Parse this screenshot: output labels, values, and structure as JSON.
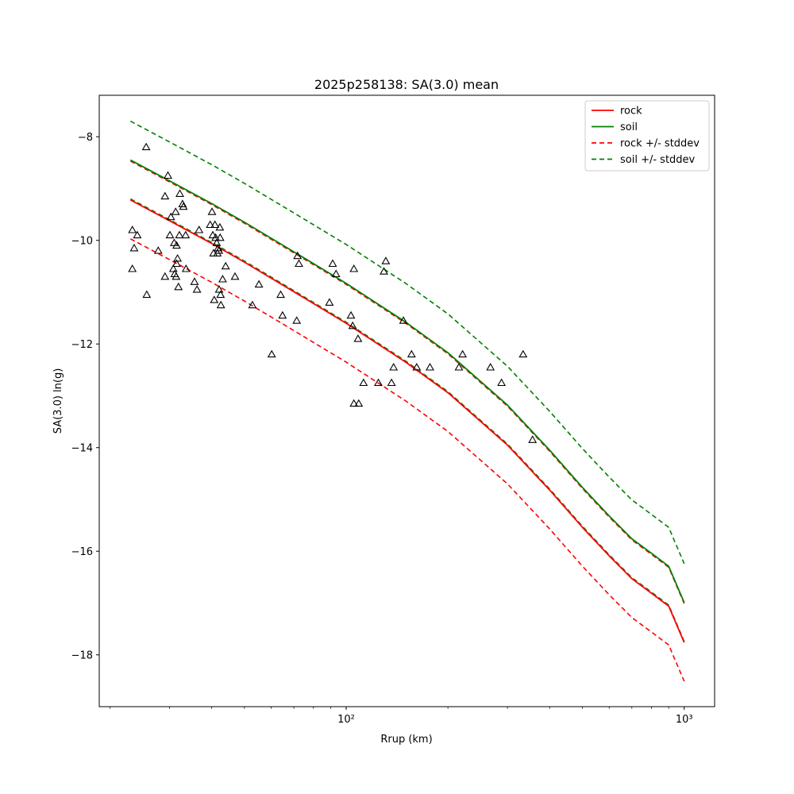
{
  "chart_data": {
    "type": "scatter",
    "title": "2025p258138: SA(3.0) mean",
    "xlabel": "Rrup (km)",
    "ylabel": "SA(3.0) ln(g)",
    "xscale": "log",
    "xlim": [
      18.6,
      1230
    ],
    "ylim": [
      -19.0,
      -7.2
    ],
    "x_tick_labels": [
      {
        "value": 100,
        "text": "10²"
      },
      {
        "value": 1000,
        "text": "10³"
      }
    ],
    "y_ticks": [
      -8,
      -10,
      -12,
      -14,
      -16,
      -18
    ],
    "y_tick_labels": [
      "−8",
      "−10",
      "−12",
      "−14",
      "−16",
      "−18"
    ],
    "legend_position": "top-right",
    "colors": {
      "rock": "#ff0000",
      "soil": "#008000",
      "observed": "#000000"
    },
    "legend": [
      {
        "label": "rock",
        "color": "#ff0000",
        "dash": "solid"
      },
      {
        "label": "soil",
        "color": "#008000",
        "dash": "solid"
      },
      {
        "label": "rock +/- stddev",
        "color": "#ff0000",
        "dash": "dashed"
      },
      {
        "label": "soil +/- stddev",
        "color": "#008000",
        "dash": "dashed"
      }
    ],
    "curve_x": [
      23,
      30,
      40,
      50,
      70,
      100,
      150,
      200,
      300,
      400,
      500,
      600,
      700,
      800,
      900,
      1000
    ],
    "series": [
      {
        "name": "rock",
        "role": "rock-mean",
        "values": [
          -9.22,
          -9.62,
          -10.06,
          -10.42,
          -10.99,
          -11.6,
          -12.35,
          -12.94,
          -13.95,
          -14.82,
          -15.54,
          -16.09,
          -16.53,
          -16.81,
          -17.06,
          -17.76
        ]
      },
      {
        "name": "soil",
        "role": "soil-mean",
        "values": [
          -8.45,
          -8.85,
          -9.29,
          -9.65,
          -10.22,
          -10.83,
          -11.58,
          -12.17,
          -13.18,
          -14.05,
          -14.77,
          -15.32,
          -15.76,
          -16.04,
          -16.29,
          -16.99
        ]
      },
      {
        "name": "rock +/- stddev",
        "role": "rock-upper",
        "values": [
          -8.47,
          -8.87,
          -9.31,
          -9.67,
          -10.24,
          -10.85,
          -11.6,
          -12.19,
          -13.2,
          -14.07,
          -14.79,
          -15.34,
          -15.78,
          -16.06,
          -16.31,
          -17.01
        ]
      },
      {
        "name": "rock +/- stddev",
        "role": "rock-lower",
        "values": [
          -9.97,
          -10.37,
          -10.81,
          -11.17,
          -11.74,
          -12.35,
          -13.1,
          -13.69,
          -14.7,
          -15.57,
          -16.29,
          -16.84,
          -17.28,
          -17.56,
          -17.81,
          -18.51
        ]
      },
      {
        "name": "soil +/- stddev",
        "role": "soil-upper",
        "values": [
          -7.7,
          -8.1,
          -8.54,
          -8.9,
          -9.47,
          -10.08,
          -10.83,
          -11.42,
          -12.43,
          -13.3,
          -14.02,
          -14.57,
          -15.01,
          -15.29,
          -15.54,
          -16.24
        ]
      },
      {
        "name": "soil +/- stddev",
        "role": "soil-lower",
        "values": [
          -9.2,
          -9.6,
          -10.04,
          -10.4,
          -10.97,
          -11.58,
          -12.33,
          -12.92,
          -13.93,
          -14.8,
          -15.52,
          -16.07,
          -16.51,
          -16.79,
          -17.04,
          -17.74
        ]
      }
    ],
    "points": [
      {
        "x": 25.6,
        "y": -8.2
      },
      {
        "x": 23.3,
        "y": -9.8
      },
      {
        "x": 23.6,
        "y": -10.15
      },
      {
        "x": 24.1,
        "y": -9.9
      },
      {
        "x": 23.3,
        "y": -10.55
      },
      {
        "x": 25.7,
        "y": -11.05
      },
      {
        "x": 27.8,
        "y": -10.2
      },
      {
        "x": 29.1,
        "y": -9.15
      },
      {
        "x": 29.7,
        "y": -8.75
      },
      {
        "x": 29.1,
        "y": -10.7
      },
      {
        "x": 30.1,
        "y": -9.9
      },
      {
        "x": 30.3,
        "y": -9.55
      },
      {
        "x": 30.8,
        "y": -10.55
      },
      {
        "x": 31.0,
        "y": -10.05
      },
      {
        "x": 31.1,
        "y": -10.65
      },
      {
        "x": 31.3,
        "y": -9.45
      },
      {
        "x": 31.5,
        "y": -10.1
      },
      {
        "x": 31.5,
        "y": -10.45
      },
      {
        "x": 31.7,
        "y": -10.35
      },
      {
        "x": 31.4,
        "y": -10.7
      },
      {
        "x": 31.9,
        "y": -10.9
      },
      {
        "x": 32.2,
        "y": -9.1
      },
      {
        "x": 32.1,
        "y": -9.9
      },
      {
        "x": 32.8,
        "y": -9.3
      },
      {
        "x": 33.0,
        "y": -9.35
      },
      {
        "x": 33.5,
        "y": -9.9
      },
      {
        "x": 33.6,
        "y": -10.55
      },
      {
        "x": 35.6,
        "y": -10.8
      },
      {
        "x": 36.2,
        "y": -10.95
      },
      {
        "x": 36.7,
        "y": -9.8
      },
      {
        "x": 39.6,
        "y": -9.7
      },
      {
        "x": 40.1,
        "y": -9.45
      },
      {
        "x": 40.3,
        "y": -9.9
      },
      {
        "x": 40.5,
        "y": -10.25
      },
      {
        "x": 40.7,
        "y": -11.15
      },
      {
        "x": 40.9,
        "y": -9.7
      },
      {
        "x": 41.1,
        "y": -9.95
      },
      {
        "x": 41.4,
        "y": -10.05
      },
      {
        "x": 41.6,
        "y": -10.25
      },
      {
        "x": 41.8,
        "y": -10.15
      },
      {
        "x": 42.0,
        "y": -10.2
      },
      {
        "x": 42.1,
        "y": -10.95
      },
      {
        "x": 42.3,
        "y": -9.75
      },
      {
        "x": 42.4,
        "y": -9.95
      },
      {
        "x": 42.5,
        "y": -11.05
      },
      {
        "x": 42.6,
        "y": -11.25
      },
      {
        "x": 43.1,
        "y": -10.75
      },
      {
        "x": 44.0,
        "y": -10.5
      },
      {
        "x": 46.9,
        "y": -10.7
      },
      {
        "x": 52.8,
        "y": -11.25
      },
      {
        "x": 55.2,
        "y": -10.85
      },
      {
        "x": 60.2,
        "y": -12.2
      },
      {
        "x": 64.0,
        "y": -11.05
      },
      {
        "x": 64.8,
        "y": -11.45
      },
      {
        "x": 71.4,
        "y": -11.55
      },
      {
        "x": 71.8,
        "y": -10.3
      },
      {
        "x": 72.5,
        "y": -10.45
      },
      {
        "x": 89.2,
        "y": -11.2
      },
      {
        "x": 91.2,
        "y": -10.45
      },
      {
        "x": 93.3,
        "y": -10.65
      },
      {
        "x": 103.3,
        "y": -11.45
      },
      {
        "x": 104.5,
        "y": -11.65
      },
      {
        "x": 105.4,
        "y": -10.55
      },
      {
        "x": 105.4,
        "y": -13.15
      },
      {
        "x": 108.4,
        "y": -11.9
      },
      {
        "x": 108.9,
        "y": -13.15
      },
      {
        "x": 112.5,
        "y": -12.75
      },
      {
        "x": 124.5,
        "y": -12.75
      },
      {
        "x": 129.3,
        "y": -10.6
      },
      {
        "x": 131.0,
        "y": -10.4
      },
      {
        "x": 136.2,
        "y": -12.75
      },
      {
        "x": 138.1,
        "y": -12.45
      },
      {
        "x": 147.7,
        "y": -11.55
      },
      {
        "x": 156.1,
        "y": -12.2
      },
      {
        "x": 161.7,
        "y": -12.45
      },
      {
        "x": 176.9,
        "y": -12.45
      },
      {
        "x": 215.5,
        "y": -12.45
      },
      {
        "x": 221.0,
        "y": -12.2
      },
      {
        "x": 267.2,
        "y": -12.45
      },
      {
        "x": 288.0,
        "y": -12.75
      },
      {
        "x": 333.7,
        "y": -12.2
      },
      {
        "x": 355.8,
        "y": -13.85
      }
    ]
  }
}
